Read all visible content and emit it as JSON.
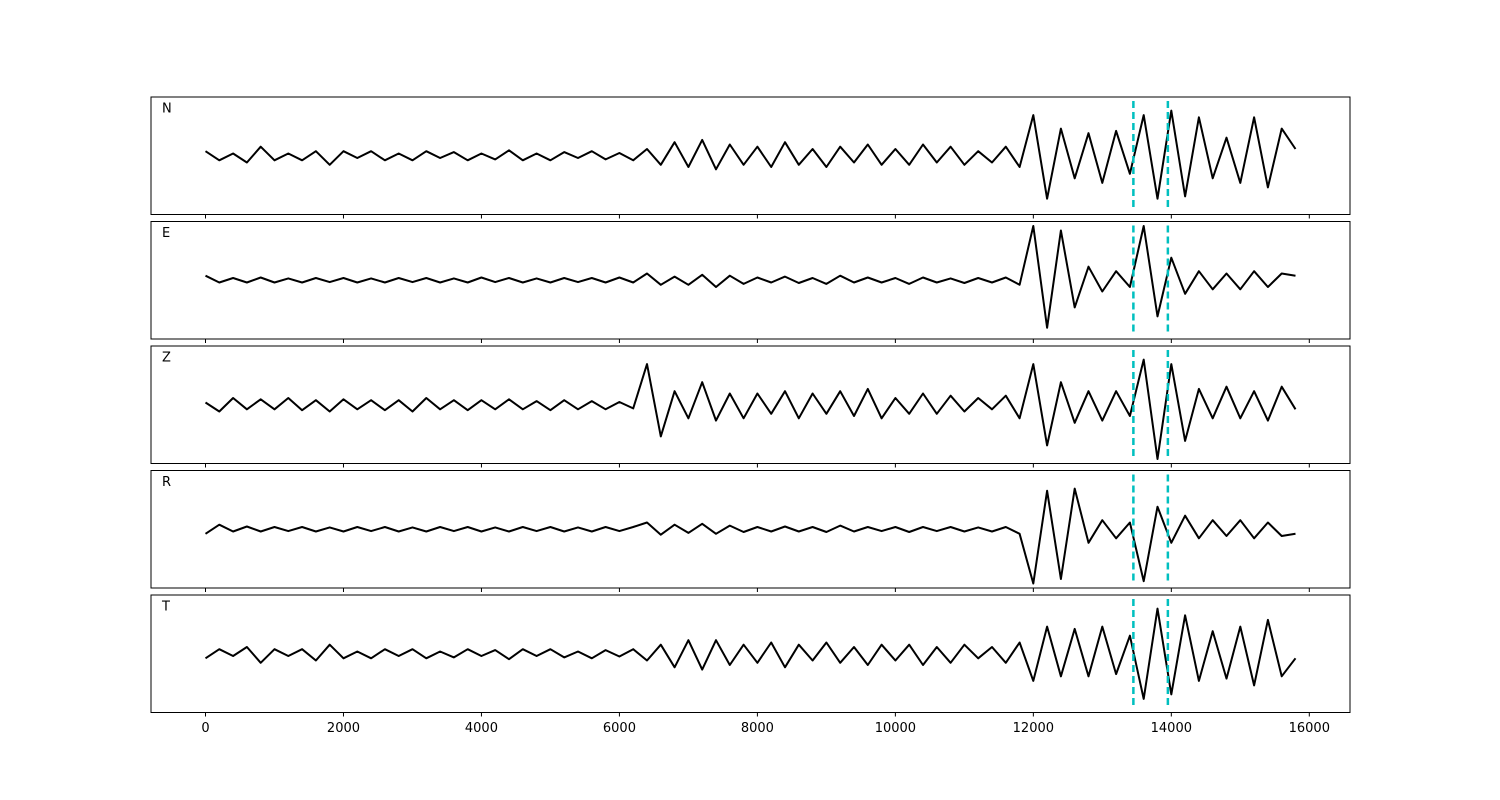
{
  "chart_data": {
    "type": "line",
    "xlim": [
      -790,
      16590
    ],
    "xticks": [
      0,
      2000,
      4000,
      6000,
      8000,
      10000,
      12000,
      14000,
      16000
    ],
    "ylim": [
      -1.3,
      1.3
    ],
    "x": [
      0,
      200,
      400,
      600,
      800,
      1000,
      1200,
      1400,
      1600,
      1800,
      2000,
      2200,
      2400,
      2600,
      2800,
      3000,
      3200,
      3400,
      3600,
      3800,
      4000,
      4200,
      4400,
      4600,
      4800,
      5000,
      5200,
      5400,
      5600,
      5800,
      6000,
      6200,
      6400,
      6600,
      6800,
      7000,
      7200,
      7400,
      7600,
      7800,
      8000,
      8200,
      8400,
      8600,
      8800,
      9000,
      9200,
      9400,
      9600,
      9800,
      10000,
      10200,
      10400,
      10600,
      10800,
      11000,
      11200,
      11400,
      11600,
      11800,
      12000,
      12200,
      12400,
      12600,
      12800,
      13000,
      13200,
      13400,
      13600,
      13800,
      14000,
      14200,
      14400,
      14600,
      14800,
      15000,
      15200,
      15400,
      15600,
      15800
    ],
    "markers": {
      "x": [
        13450,
        13950
      ],
      "color": "#00bfbf"
    },
    "series": [
      {
        "name": "N",
        "color": "#000000",
        "values": [
          0.1,
          -0.1,
          0.05,
          -0.15,
          0.2,
          -0.1,
          0.05,
          -0.1,
          0.1,
          -0.2,
          0.1,
          -0.05,
          0.1,
          -0.1,
          0.05,
          -0.1,
          0.1,
          -0.05,
          0.08,
          -0.1,
          0.05,
          -0.08,
          0.12,
          -0.1,
          0.05,
          -0.1,
          0.08,
          -0.05,
          0.1,
          -0.08,
          0.06,
          -0.1,
          0.15,
          -0.2,
          0.3,
          -0.25,
          0.35,
          -0.3,
          0.25,
          -0.2,
          0.2,
          -0.25,
          0.3,
          -0.2,
          0.15,
          -0.25,
          0.2,
          -0.15,
          0.25,
          -0.2,
          0.15,
          -0.2,
          0.25,
          -0.15,
          0.2,
          -0.2,
          0.1,
          -0.15,
          0.2,
          -0.25,
          0.9,
          -0.95,
          0.6,
          -0.5,
          0.5,
          -0.6,
          0.55,
          -0.4,
          0.9,
          -0.95,
          1.0,
          -0.9,
          0.85,
          -0.5,
          0.4,
          -0.6,
          0.85,
          -0.7,
          0.6,
          0.15
        ]
      },
      {
        "name": "E",
        "color": "#000000",
        "values": [
          0.1,
          -0.05,
          0.05,
          -0.05,
          0.06,
          -0.05,
          0.04,
          -0.05,
          0.05,
          -0.04,
          0.05,
          -0.05,
          0.04,
          -0.05,
          0.05,
          -0.04,
          0.05,
          -0.05,
          0.04,
          -0.05,
          0.06,
          -0.04,
          0.05,
          -0.05,
          0.04,
          -0.05,
          0.05,
          -0.04,
          0.05,
          -0.05,
          0.06,
          -0.05,
          0.15,
          -0.1,
          0.08,
          -0.1,
          0.12,
          -0.15,
          0.1,
          -0.08,
          0.06,
          -0.05,
          0.08,
          -0.06,
          0.05,
          -0.08,
          0.1,
          -0.05,
          0.06,
          -0.05,
          0.05,
          -0.08,
          0.06,
          -0.05,
          0.04,
          -0.06,
          0.05,
          -0.05,
          0.06,
          -0.1,
          1.2,
          -1.05,
          1.1,
          -0.6,
          0.3,
          -0.25,
          0.2,
          -0.15,
          1.2,
          -0.8,
          0.5,
          -0.3,
          0.2,
          -0.2,
          0.15,
          -0.2,
          0.2,
          -0.15,
          0.15,
          0.1
        ]
      },
      {
        "name": "Z",
        "color": "#000000",
        "values": [
          0.05,
          -0.15,
          0.15,
          -0.1,
          0.12,
          -0.1,
          0.15,
          -0.12,
          0.1,
          -0.15,
          0.12,
          -0.1,
          0.1,
          -0.12,
          0.1,
          -0.15,
          0.15,
          -0.1,
          0.1,
          -0.12,
          0.1,
          -0.1,
          0.12,
          -0.1,
          0.08,
          -0.12,
          0.1,
          -0.1,
          0.08,
          -0.1,
          0.06,
          -0.08,
          0.9,
          -0.7,
          0.3,
          -0.3,
          0.5,
          -0.35,
          0.25,
          -0.3,
          0.25,
          -0.2,
          0.3,
          -0.3,
          0.25,
          -0.2,
          0.3,
          -0.25,
          0.35,
          -0.3,
          0.15,
          -0.2,
          0.25,
          -0.2,
          0.2,
          -0.15,
          0.15,
          -0.1,
          0.2,
          -0.3,
          0.9,
          -0.9,
          0.5,
          -0.4,
          0.3,
          -0.35,
          0.3,
          -0.25,
          1.0,
          -1.2,
          0.9,
          -0.8,
          0.35,
          -0.3,
          0.4,
          -0.3,
          0.3,
          -0.35,
          0.4,
          -0.1
        ]
      },
      {
        "name": "R",
        "color": "#000000",
        "values": [
          -0.1,
          0.1,
          -0.05,
          0.06,
          -0.05,
          0.05,
          -0.04,
          0.05,
          -0.05,
          0.04,
          -0.05,
          0.05,
          -0.04,
          0.05,
          -0.05,
          0.04,
          -0.05,
          0.05,
          -0.04,
          0.05,
          -0.05,
          0.04,
          -0.05,
          0.05,
          -0.04,
          0.05,
          -0.05,
          0.04,
          -0.05,
          0.05,
          -0.04,
          0.05,
          0.15,
          -0.12,
          0.1,
          -0.08,
          0.12,
          -0.1,
          0.08,
          -0.06,
          0.05,
          -0.05,
          0.06,
          -0.05,
          0.05,
          -0.06,
          0.08,
          -0.05,
          0.05,
          -0.04,
          0.05,
          -0.06,
          0.05,
          -0.04,
          0.05,
          -0.05,
          0.04,
          -0.05,
          0.05,
          -0.1,
          -1.2,
          0.85,
          -1.1,
          0.9,
          -0.3,
          0.2,
          -0.2,
          0.15,
          -1.15,
          0.5,
          -0.3,
          0.3,
          -0.2,
          0.2,
          -0.15,
          0.2,
          -0.2,
          0.15,
          -0.15,
          -0.1
        ]
      },
      {
        "name": "T",
        "color": "#000000",
        "values": [
          -0.1,
          0.1,
          -0.05,
          0.15,
          -0.2,
          0.1,
          -0.05,
          0.1,
          -0.15,
          0.2,
          -0.1,
          0.05,
          -0.1,
          0.1,
          -0.05,
          0.1,
          -0.1,
          0.05,
          -0.08,
          0.1,
          -0.05,
          0.08,
          -0.12,
          0.1,
          -0.05,
          0.1,
          -0.08,
          0.05,
          -0.1,
          0.08,
          -0.06,
          0.1,
          -0.15,
          0.2,
          -0.3,
          0.3,
          -0.35,
          0.3,
          -0.25,
          0.2,
          -0.2,
          0.25,
          -0.3,
          0.2,
          -0.15,
          0.25,
          -0.2,
          0.15,
          -0.25,
          0.2,
          -0.15,
          0.2,
          -0.25,
          0.15,
          -0.2,
          0.2,
          -0.1,
          0.15,
          -0.2,
          0.25,
          -0.6,
          0.6,
          -0.5,
          0.55,
          -0.5,
          0.6,
          -0.45,
          0.4,
          -1.0,
          1.0,
          -0.9,
          0.85,
          -0.6,
          0.5,
          -0.55,
          0.6,
          -0.7,
          0.75,
          -0.5,
          -0.1
        ]
      }
    ]
  }
}
